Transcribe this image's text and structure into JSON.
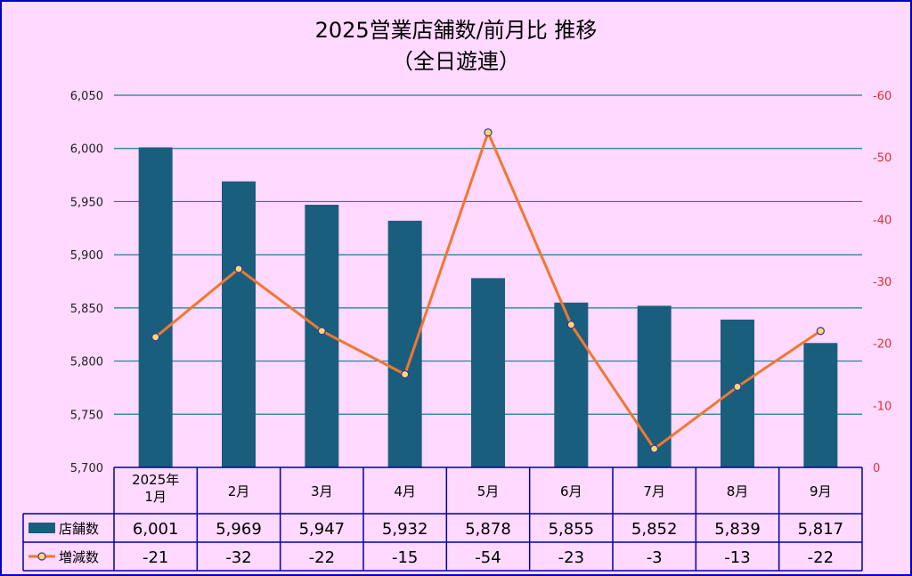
{
  "chart_data": {
    "type": "bar+line",
    "title": "2025営業店舗数/前月比  推移",
    "subtitle": "（全日遊連）",
    "categories": [
      "2025年\n1月",
      "2月",
      "3月",
      "4月",
      "5月",
      "6月",
      "7月",
      "8月",
      "9月"
    ],
    "series": [
      {
        "name": "店舗数",
        "type": "bar",
        "axis": "left",
        "color": "#1a5e7e",
        "values": [
          6001,
          5969,
          5947,
          5932,
          5878,
          5855,
          5852,
          5839,
          5817
        ],
        "labels": [
          "6,001",
          "5,969",
          "5,947",
          "5,932",
          "5,878",
          "5,855",
          "5,852",
          "5,839",
          "5,817"
        ]
      },
      {
        "name": "増減数",
        "type": "line",
        "axis": "right",
        "color": "#f07830",
        "marker_color": "#ffd966",
        "values": [
          -21,
          -32,
          -22,
          -15,
          -54,
          -23,
          -3,
          -13,
          -22
        ],
        "labels": [
          "-21",
          "-32",
          "-22",
          "-15",
          "-54",
          "-23",
          "-3",
          "-13",
          "-22"
        ]
      }
    ],
    "left_axis": {
      "ylim": [
        5700,
        6050
      ],
      "ticks": [
        "5,700",
        "5,750",
        "5,800",
        "5,850",
        "5,900",
        "5,950",
        "6,000",
        "6,050"
      ],
      "tick_values": [
        5700,
        5750,
        5800,
        5850,
        5900,
        5950,
        6000,
        6050
      ]
    },
    "right_axis": {
      "ylim": [
        0,
        -60
      ],
      "inverted": true,
      "color": "#e03030",
      "ticks": [
        "0",
        "-10",
        "-20",
        "-30",
        "-40",
        "-50",
        "-60"
      ],
      "tick_values": [
        0,
        -10,
        -20,
        -30,
        -40,
        -50,
        -60
      ]
    },
    "grid": true,
    "data_table": true,
    "colors": {
      "background": "#ffd9ff",
      "border": "#0000cc",
      "grid": "#1a7a9a",
      "table_line": "#0000aa"
    }
  }
}
